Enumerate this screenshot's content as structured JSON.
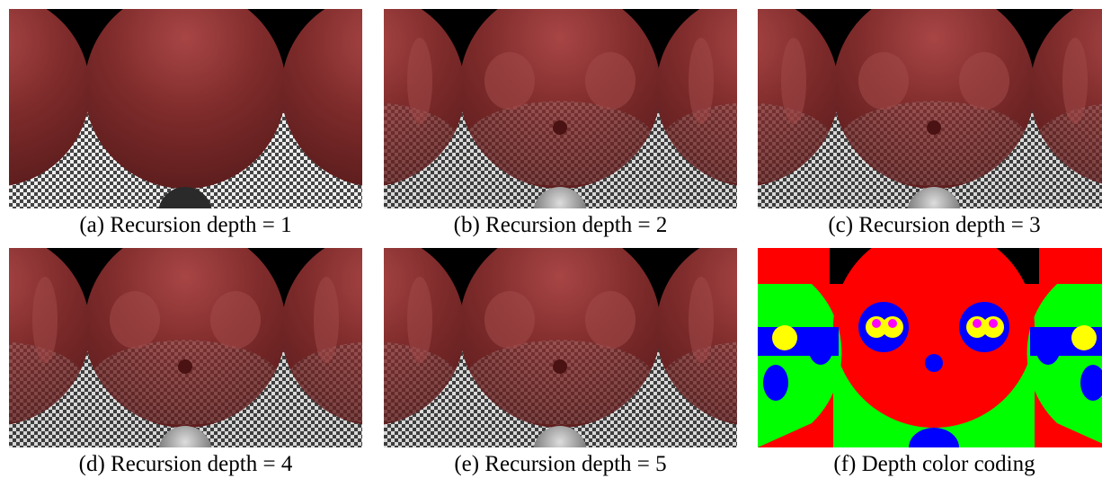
{
  "figure": {
    "panels": [
      {
        "caption": "(a) Recursion depth = 1"
      },
      {
        "caption": "(b) Recursion depth = 2"
      },
      {
        "caption": "(c) Recursion depth = 3"
      },
      {
        "caption": "(d) Recursion depth = 4"
      },
      {
        "caption": "(e) Recursion depth = 5"
      },
      {
        "caption": "(f) Depth color coding"
      }
    ]
  }
}
